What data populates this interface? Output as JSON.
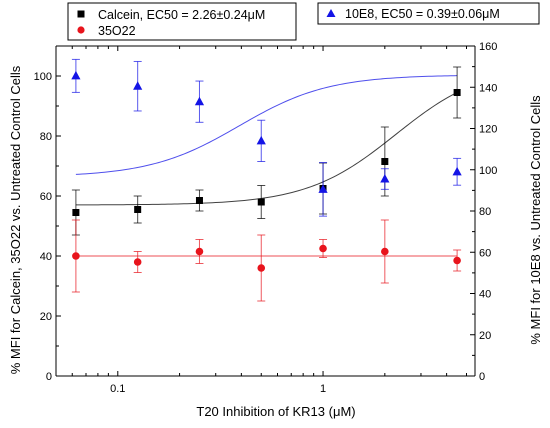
{
  "chart_data": {
    "type": "scatter",
    "xlabel": "T20 Inhibition of KR13 (μM)",
    "x_scale": "log",
    "xlim": [
      0.05,
      5.5
    ],
    "x_ticks": [
      0.1,
      1
    ],
    "x_tick_labels": [
      "0.1",
      "1"
    ],
    "ylabel": "% MFI for Calcein, 35O22 vs. Untreated Control Cells",
    "ylim": [
      0,
      110
    ],
    "y_ticks": [
      0,
      20,
      40,
      60,
      80,
      100
    ],
    "y2label": "% MFI for 10E8 vs. Untreated Control Cells",
    "y2lim": [
      0,
      160
    ],
    "y2_ticks": [
      0,
      20,
      40,
      60,
      80,
      100,
      120,
      140,
      160
    ],
    "grid": false,
    "legends": [
      {
        "placement": "top-left",
        "entries": [
          "calcein",
          "35o22"
        ]
      },
      {
        "placement": "top-right",
        "entries": [
          "10e8"
        ]
      }
    ],
    "series": [
      {
        "key": "calcein",
        "name": "Calcein, EC50 = 2.26±0.24μM",
        "axis": "left",
        "color": "#000000",
        "marker": "square",
        "x": [
          0.0625,
          0.125,
          0.25,
          0.5,
          1,
          2,
          4.5
        ],
        "y": [
          54.5,
          55.5,
          58.5,
          58,
          62.5,
          71.5,
          94.5
        ],
        "err": [
          7.5,
          4.5,
          3.5,
          5.5,
          8.5,
          11.5,
          8.5
        ],
        "fit": {
          "bottom": 57,
          "top": 104,
          "ec50": 2.26,
          "hill": 2.0
        }
      },
      {
        "key": "35o22",
        "name": "35O22",
        "axis": "left",
        "color": "#e8141c",
        "marker": "circle",
        "x": [
          0.0625,
          0.125,
          0.25,
          0.5,
          1,
          2,
          4.5
        ],
        "y": [
          40,
          38,
          41.5,
          36,
          42.5,
          41.5,
          38.5
        ],
        "err": [
          12,
          3.5,
          4,
          11,
          3,
          10.5,
          3.5
        ],
        "fit": {
          "constant": 40
        }
      },
      {
        "key": "10e8",
        "name": "10E8, EC50 = 0.39±0.06μM",
        "axis": "right",
        "color": "#1414e6",
        "marker": "triangle",
        "x": [
          0.0625,
          0.125,
          0.25,
          0.5,
          1,
          2,
          4.5
        ],
        "y": [
          145.5,
          140.5,
          133,
          114,
          90.5,
          95.5,
          99
        ],
        "err": [
          8,
          12,
          10,
          10,
          13,
          5,
          6.5
        ],
        "fit": {
          "top": 146,
          "bottom": 96.5,
          "ec50": 0.39,
          "hill": 2.0
        }
      }
    ]
  }
}
